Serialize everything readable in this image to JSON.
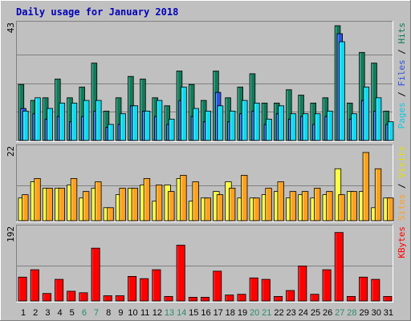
{
  "chart_data": {
    "type": "bar",
    "title": "Daily usage for January 2018",
    "days": [
      "1",
      "2",
      "3",
      "4",
      "5",
      "6",
      "7",
      "8",
      "9",
      "10",
      "11",
      "12",
      "13",
      "14",
      "15",
      "16",
      "17",
      "18",
      "19",
      "20",
      "21",
      "22",
      "23",
      "24",
      "25",
      "26",
      "27",
      "28",
      "29",
      "30",
      "31"
    ],
    "weekend_days": [
      6,
      7,
      13,
      14,
      20,
      21,
      27,
      28
    ],
    "colors": {
      "hits": "#127a5a",
      "files": "#2a54e0",
      "pages": "#10d8f0",
      "visits": "#ffff40",
      "sites": "#ff9f1f",
      "kbytes": "#ff0000",
      "title": "#0000b8",
      "weekend_label": "#2a8a6a",
      "weekday_label": "#000000",
      "panel_bg": "#c0c0c0"
    },
    "panels": [
      {
        "max_label": "43",
        "ymax": 43,
        "right_label_parts": [
          {
            "text": "Pages",
            "color": "#10c8e0"
          },
          {
            "text": " / ",
            "color": "#000000"
          },
          {
            "text": "Files",
            "color": "#2a54e0"
          },
          {
            "text": " / ",
            "color": "#000000"
          },
          {
            "text": "Hits",
            "color": "#127a5a"
          }
        ],
        "series": [
          {
            "key": "hits",
            "values": [
              21,
              15,
              16,
              23,
              16,
              20,
              29,
              11,
              16,
              24,
              23,
              16,
              13,
              26,
              21,
              15,
              26,
              16,
              20,
              25,
              14,
              14,
              19,
              17,
              14,
              16,
              43,
              14,
              33,
              29,
              11
            ]
          },
          {
            "key": "files",
            "values": [
              12,
              10,
              8,
              9,
              7,
              9,
              11,
              5,
              6,
              13,
              11,
              9,
              6,
              15,
              9,
              7,
              18,
              7,
              10,
              11,
              6,
              10,
              8,
              9,
              6,
              9,
              40,
              8,
              15,
              11,
              6
            ]
          },
          {
            "key": "pages",
            "values": [
              11,
              16,
              12,
              14,
              14,
              15,
              15,
              6,
              10,
              13,
              11,
              15,
              8,
              20,
              12,
              11,
              13,
              11,
              15,
              14,
              8,
              13,
              10,
              10,
              10,
              11,
              37,
              10,
              20,
              16,
              7
            ]
          }
        ]
      },
      {
        "max_label": "22",
        "ymax": 22,
        "right_label_parts": [
          {
            "text": "Sites",
            "color": "#ff9f1f"
          },
          {
            "text": " / ",
            "color": "#000000"
          },
          {
            "text": "Visits",
            "color": "#e0e000"
          }
        ],
        "series": [
          {
            "key": "visits",
            "values": [
              7,
              12,
              10,
              10,
              11,
              7,
              10,
              4,
              8,
              10,
              11,
              6,
              11,
              13,
              6,
              7,
              9,
              12,
              7,
              7,
              8,
              9,
              7,
              8,
              7,
              8,
              16,
              9,
              9,
              4,
              7
            ]
          },
          {
            "key": "sites",
            "values": [
              8,
              13,
              10,
              10,
              13,
              9,
              12,
              4,
              10,
              10,
              13,
              11,
              9,
              14,
              12,
              7,
              8,
              10,
              14,
              7,
              10,
              12,
              9,
              9,
              10,
              9,
              8,
              9,
              21,
              16,
              7
            ]
          }
        ]
      },
      {
        "max_label": "192",
        "ymax": 192,
        "right_label_parts": [
          {
            "text": "KBytes",
            "color": "#ff0000"
          }
        ],
        "series": [
          {
            "key": "kbytes",
            "values": [
              64,
              84,
              20,
              58,
              26,
              22,
              142,
              14,
              14,
              66,
              60,
              84,
              12,
              150,
              10,
              10,
              80,
              16,
              18,
              62,
              58,
              12,
              28,
              94,
              18,
              84,
              184,
              12,
              64,
              58,
              12
            ]
          }
        ]
      }
    ]
  }
}
